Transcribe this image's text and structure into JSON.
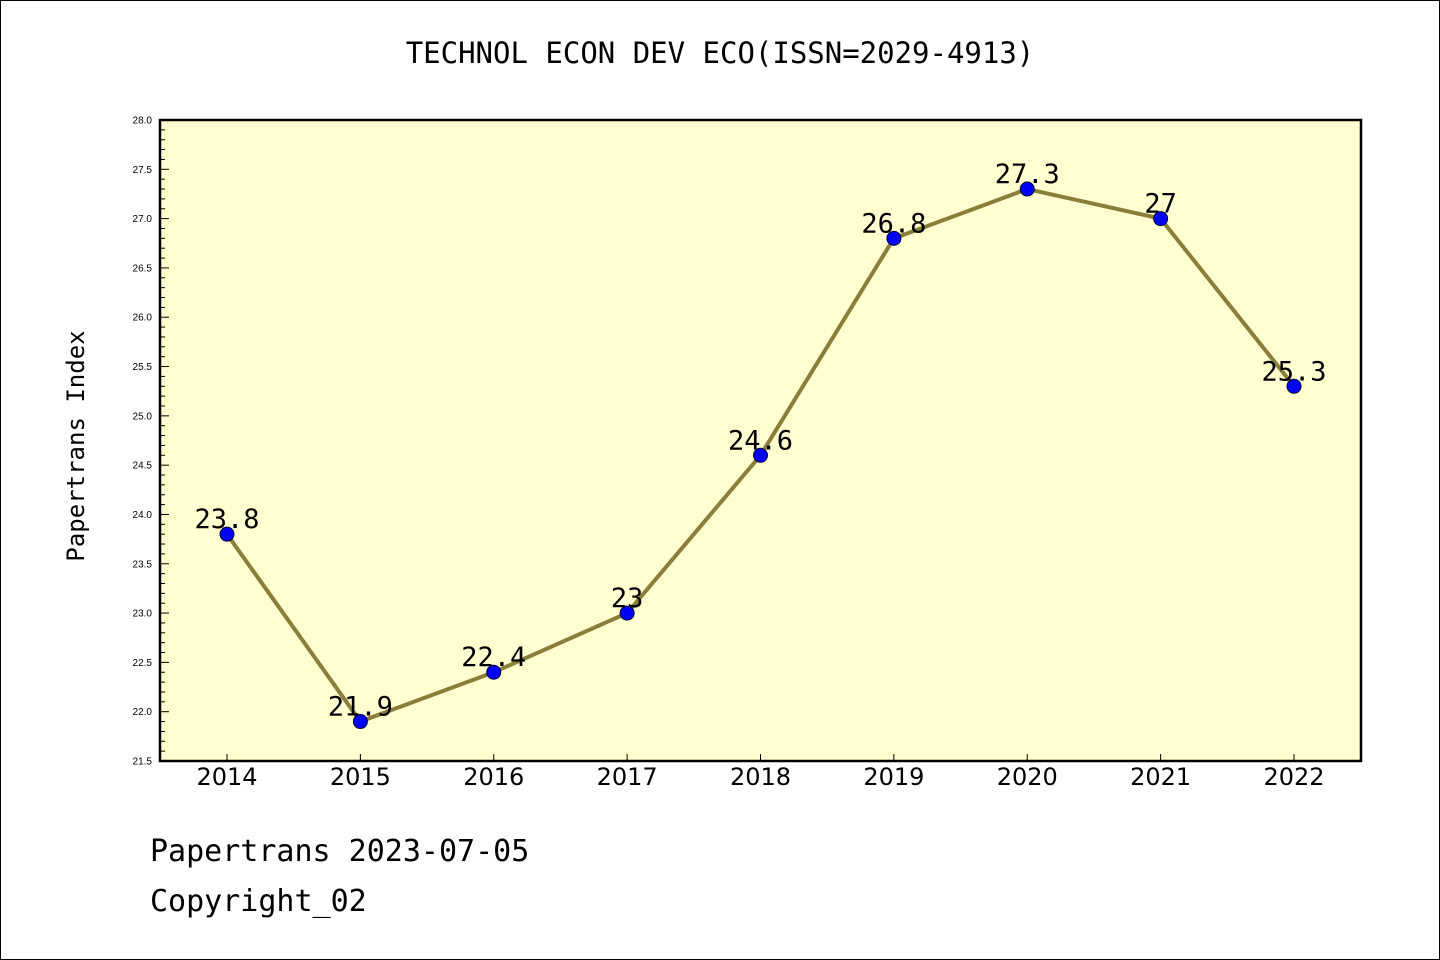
{
  "page": {
    "footer_line1": "Papertrans 2023-07-05",
    "footer_line2": "Copyright_02"
  },
  "chart_data": {
    "type": "line",
    "title": "TECHNOL ECON DEV ECO(ISSN=2029-4913)",
    "xlabel": "",
    "ylabel": "Papertrans Index",
    "categories": [
      "2014",
      "2015",
      "2016",
      "2017",
      "2018",
      "2019",
      "2020",
      "2021",
      "2022"
    ],
    "series": [
      {
        "values": [
          23.8,
          21.9,
          22.4,
          23.0,
          24.6,
          26.8,
          27.3,
          27.0,
          25.3
        ],
        "labels": [
          "23.8",
          "21.9",
          "22.4",
          "23",
          "24.6",
          "26.8",
          "27.3",
          "27",
          "25.3"
        ],
        "line_color": "#8b7d3a",
        "marker_color": "#0000ff"
      }
    ],
    "ylim": [
      21.5,
      28.0
    ],
    "y_ticks": [
      "21.5",
      "22.0",
      "22.5",
      "23.0",
      "23.5",
      "24.0",
      "24.5",
      "25.0",
      "25.5",
      "26.0",
      "26.5",
      "27.0",
      "27.5",
      "28.0"
    ],
    "grid": false,
    "legend": "none",
    "plot_background": "#ffffd0"
  }
}
